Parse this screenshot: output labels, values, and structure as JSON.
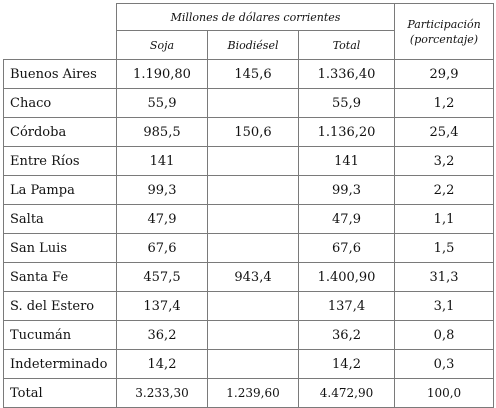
{
  "header": {
    "group": "Millones de dólares corrientes",
    "share_line1": "Participación",
    "share_line2": "(porcentaje)",
    "columns": [
      "Soja",
      "Biodiésel",
      "Total"
    ]
  },
  "rows": [
    {
      "label": "Buenos Aires",
      "soja": "1.190,80",
      "biodiesel": "145,6",
      "total": "1.336,40",
      "share": "29,9"
    },
    {
      "label": "Chaco",
      "soja": "55,9",
      "biodiesel": "",
      "total": "55,9",
      "share": "1,2"
    },
    {
      "label": "Córdoba",
      "soja": "985,5",
      "biodiesel": "150,6",
      "total": "1.136,20",
      "share": "25,4"
    },
    {
      "label": "Entre Ríos",
      "soja": "141",
      "biodiesel": "",
      "total": "141",
      "share": "3,2"
    },
    {
      "label": "La Pampa",
      "soja": "99,3",
      "biodiesel": "",
      "total": "99,3",
      "share": "2,2"
    },
    {
      "label": "Salta",
      "soja": "47,9",
      "biodiesel": "",
      "total": "47,9",
      "share": "1,1"
    },
    {
      "label": "San Luis",
      "soja": "67,6",
      "biodiesel": "",
      "total": "67,6",
      "share": "1,5"
    },
    {
      "label": "Santa Fe",
      "soja": "457,5",
      "biodiesel": "943,4",
      "total": "1.400,90",
      "share": "31,3"
    },
    {
      "label": "S. del Estero",
      "soja": "137,4",
      "biodiesel": "",
      "total": "137,4",
      "share": "3,1"
    },
    {
      "label": "Tucumán",
      "soja": "36,2",
      "biodiesel": "",
      "total": "36,2",
      "share": "0,8"
    },
    {
      "label": "Indeterminado",
      "soja": "14,2",
      "biodiesel": "",
      "total": "14,2",
      "share": "0,3"
    },
    {
      "label": "Total",
      "soja": "3.233,30",
      "biodiesel": "1.239,60",
      "total": "4.472,90",
      "share": "100,0"
    }
  ]
}
